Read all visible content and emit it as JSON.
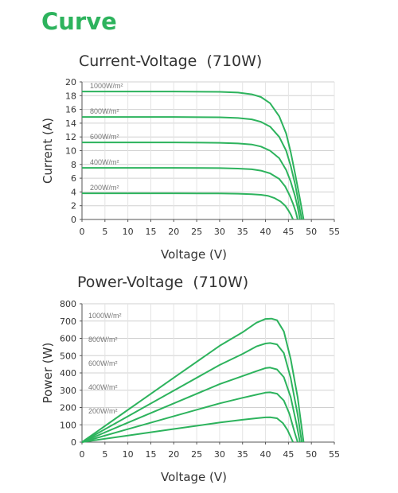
{
  "heading": "Curve",
  "chart_data": [
    {
      "type": "line",
      "title": "Current-Voltage",
      "title_power": "(710W)",
      "xlabel": "Voltage (V)",
      "ylabel": "Current (A)",
      "xlim": [
        0,
        55
      ],
      "ylim": [
        0,
        20
      ],
      "xticks": [
        0,
        5,
        10,
        15,
        20,
        25,
        30,
        35,
        40,
        45,
        50,
        55
      ],
      "yticks": [
        0,
        2,
        4,
        6,
        8,
        10,
        12,
        14,
        16,
        18,
        20
      ],
      "grid": true,
      "line_color": "#2db35d",
      "series": [
        {
          "name": "1000W/m²",
          "x": [
            0,
            20,
            30,
            34,
            37,
            39,
            41,
            43,
            44.5,
            45.5,
            46.5,
            47.5,
            48.3
          ],
          "y": [
            18.6,
            18.6,
            18.55,
            18.45,
            18.2,
            17.8,
            16.9,
            15.0,
            12.5,
            9.8,
            6.5,
            3.0,
            0
          ]
        },
        {
          "name": "800W/m²",
          "x": [
            0,
            20,
            30,
            34,
            37,
            39,
            41,
            43,
            44.5,
            45.5,
            46.5,
            47.2,
            47.9
          ],
          "y": [
            14.9,
            14.9,
            14.85,
            14.75,
            14.55,
            14.2,
            13.5,
            12.0,
            10.0,
            7.8,
            5.0,
            2.5,
            0
          ]
        },
        {
          "name": "600W/m²",
          "x": [
            0,
            20,
            30,
            34,
            37,
            39,
            41,
            43,
            44.5,
            45.5,
            46.4,
            47.0,
            47.5
          ],
          "y": [
            11.2,
            11.2,
            11.15,
            11.05,
            10.9,
            10.6,
            10.0,
            8.9,
            7.2,
            5.5,
            3.5,
            1.8,
            0
          ]
        },
        {
          "name": "400W/m²",
          "x": [
            0,
            20,
            30,
            34,
            37,
            39,
            41,
            43,
            44.3,
            45.2,
            46.0,
            46.6,
            47.0
          ],
          "y": [
            7.5,
            7.5,
            7.47,
            7.4,
            7.3,
            7.1,
            6.7,
            5.9,
            4.8,
            3.6,
            2.3,
            1.1,
            0
          ]
        },
        {
          "name": "200W/m²",
          "x": [
            0,
            20,
            30,
            34,
            37,
            39,
            40.5,
            42,
            43.3,
            44.3,
            45.0,
            45.6,
            46.0
          ],
          "y": [
            3.8,
            3.8,
            3.78,
            3.74,
            3.68,
            3.58,
            3.45,
            3.1,
            2.6,
            2.0,
            1.3,
            0.6,
            0
          ]
        }
      ]
    },
    {
      "type": "line",
      "title": "Power-Voltage",
      "title_power": "(710W)",
      "xlabel": "Voltage (V)",
      "ylabel": "Power (W)",
      "xlim": [
        0,
        55
      ],
      "ylim": [
        0,
        800
      ],
      "xticks": [
        0,
        5,
        10,
        15,
        20,
        25,
        30,
        35,
        40,
        45,
        50,
        55
      ],
      "yticks": [
        0,
        100,
        200,
        300,
        400,
        500,
        600,
        700,
        800
      ],
      "grid": true,
      "line_color": "#2db35d",
      "series": [
        {
          "name": "1000W/m²",
          "x": [
            0,
            10,
            20,
            30,
            35,
            38,
            40,
            41.3,
            42.5,
            44,
            45.5,
            47,
            48.3
          ],
          "y": [
            0,
            186,
            372,
            557,
            635,
            690,
            712,
            714,
            705,
            640,
            480,
            260,
            0
          ]
        },
        {
          "name": "800W/m²",
          "x": [
            0,
            10,
            20,
            30,
            35,
            38,
            40,
            41,
            42.5,
            44,
            45.5,
            47,
            47.9
          ],
          "y": [
            0,
            149,
            298,
            446,
            510,
            553,
            570,
            573,
            565,
            515,
            370,
            160,
            0
          ]
        },
        {
          "name": "600W/m²",
          "x": [
            0,
            10,
            20,
            30,
            35,
            38,
            40,
            41,
            42.5,
            44,
            45.5,
            46.8,
            47.5
          ],
          "y": [
            0,
            112,
            224,
            335,
            382,
            410,
            428,
            431,
            420,
            375,
            260,
            100,
            0
          ]
        },
        {
          "name": "400W/m²",
          "x": [
            0,
            10,
            20,
            30,
            35,
            38,
            40,
            41,
            42.5,
            44,
            45.2,
            46.3,
            47.0
          ],
          "y": [
            0,
            75,
            150,
            224,
            256,
            274,
            286,
            288,
            280,
            240,
            165,
            60,
            0
          ]
        },
        {
          "name": "200W/m²",
          "x": [
            0,
            10,
            20,
            30,
            35,
            38,
            40,
            41,
            42.5,
            43.8,
            44.8,
            45.5,
            46.0
          ],
          "y": [
            0,
            38,
            76,
            113,
            129,
            138,
            143,
            144,
            138,
            110,
            70,
            30,
            0
          ]
        }
      ]
    }
  ]
}
